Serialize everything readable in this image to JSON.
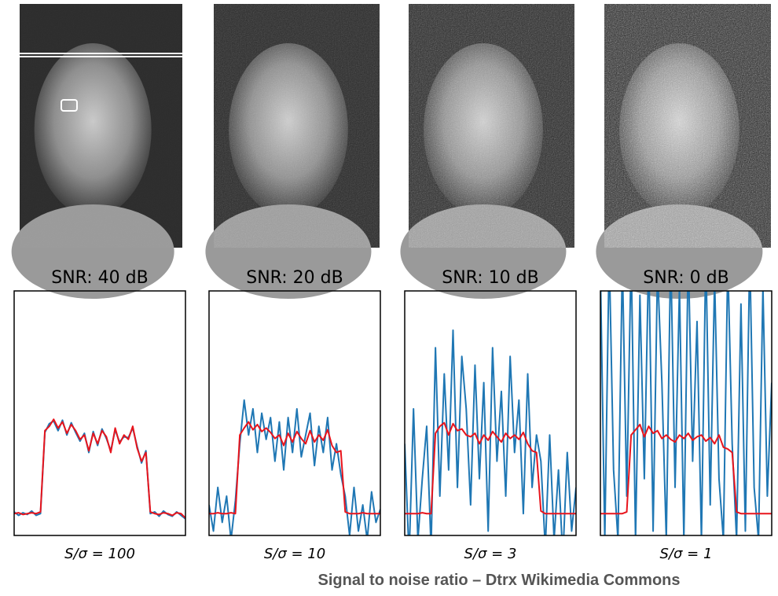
{
  "chart_data": [
    {
      "type": "line",
      "title": "SNR: 40 dB",
      "xlabel": "S/σ = 100",
      "xlim": [
        0,
        39
      ],
      "ylim": [
        -0.25,
        2.55
      ],
      "x": [
        0,
        1,
        2,
        3,
        4,
        5,
        6,
        7,
        8,
        9,
        10,
        11,
        12,
        13,
        14,
        15,
        16,
        17,
        18,
        19,
        20,
        21,
        22,
        23,
        24,
        25,
        26,
        27,
        28,
        29,
        30,
        31,
        32,
        33,
        34,
        35,
        36,
        37,
        38,
        39
      ],
      "series": [
        {
          "color": "#1f77b4",
          "values": [
            0.02,
            -0.02,
            0.01,
            -0.01,
            0.03,
            -0.02,
            0.0,
            0.93,
            1.03,
            1.06,
            0.95,
            1.07,
            0.9,
            1.04,
            0.93,
            0.83,
            0.92,
            0.7,
            0.94,
            0.78,
            0.97,
            0.86,
            0.72,
            0.96,
            0.82,
            0.88,
            0.87,
            0.98,
            0.77,
            0.58,
            0.72,
            0.0,
            0.02,
            -0.03,
            0.03,
            -0.01,
            -0.03,
            0.02,
            -0.02,
            -0.06
          ]
        },
        {
          "color": "#e8141c",
          "values": [
            0.0,
            0.01,
            -0.01,
            0.0,
            0.01,
            0.0,
            0.02,
            0.95,
            1.0,
            1.08,
            0.98,
            1.05,
            0.92,
            1.02,
            0.95,
            0.85,
            0.9,
            0.72,
            0.92,
            0.8,
            0.95,
            0.88,
            0.7,
            0.98,
            0.8,
            0.9,
            0.85,
            1.0,
            0.75,
            0.6,
            0.7,
            0.02,
            0.0,
            -0.01,
            0.01,
            0.0,
            -0.02,
            0.01,
            0.0,
            -0.05
          ]
        }
      ]
    },
    {
      "type": "line",
      "title": "SNR: 20 dB",
      "xlabel": "S/σ = 10",
      "xlim": [
        0,
        39
      ],
      "ylim": [
        -0.25,
        2.55
      ],
      "x": [
        0,
        1,
        2,
        3,
        4,
        5,
        6,
        7,
        8,
        9,
        10,
        11,
        12,
        13,
        14,
        15,
        16,
        17,
        18,
        19,
        20,
        21,
        22,
        23,
        24,
        25,
        26,
        27,
        28,
        29,
        30,
        31,
        32,
        33,
        34,
        35,
        36,
        37,
        38,
        39
      ],
      "series": [
        {
          "color": "#1f77b4",
          "values": [
            0.1,
            -0.2,
            0.3,
            -0.1,
            0.2,
            -0.3,
            0.15,
            0.8,
            1.3,
            0.9,
            1.2,
            0.7,
            1.15,
            0.85,
            1.1,
            0.6,
            1.05,
            0.5,
            1.1,
            0.7,
            1.2,
            0.65,
            0.9,
            1.15,
            0.55,
            1.0,
            0.7,
            1.1,
            0.5,
            0.8,
            0.45,
            0.2,
            -0.25,
            0.3,
            -0.2,
            0.1,
            -0.3,
            0.25,
            -0.1,
            0.05
          ]
        },
        {
          "color": "#e8141c",
          "values": [
            0.0,
            0.0,
            0.01,
            0.0,
            0.0,
            0.01,
            0.0,
            0.9,
            0.98,
            1.05,
            0.96,
            1.02,
            0.94,
            0.98,
            0.93,
            0.86,
            0.9,
            0.78,
            0.92,
            0.82,
            0.94,
            0.86,
            0.8,
            0.95,
            0.82,
            0.9,
            0.84,
            0.96,
            0.78,
            0.7,
            0.72,
            0.02,
            0.0,
            0.0,
            0.0,
            0.01,
            0.0,
            0.0,
            0.0,
            0.0
          ]
        }
      ]
    },
    {
      "type": "line",
      "title": "SNR: 10 dB",
      "xlabel": "S/σ = 3",
      "xlim": [
        0,
        39
      ],
      "ylim": [
        -0.25,
        2.55
      ],
      "x": [
        0,
        1,
        2,
        3,
        4,
        5,
        6,
        7,
        8,
        9,
        10,
        11,
        12,
        13,
        14,
        15,
        16,
        17,
        18,
        19,
        20,
        21,
        22,
        23,
        24,
        25,
        26,
        27,
        28,
        29,
        30,
        31,
        32,
        33,
        34,
        35,
        36,
        37,
        38,
        39
      ],
      "series": [
        {
          "color": "#1f77b4",
          "values": [
            0.8,
            -0.5,
            1.2,
            -0.3,
            0.4,
            1.0,
            -0.4,
            1.9,
            0.2,
            1.6,
            0.5,
            2.1,
            0.3,
            1.8,
            1.2,
            0.1,
            1.7,
            0.4,
            1.5,
            -0.2,
            1.9,
            0.6,
            1.4,
            0.2,
            1.8,
            0.7,
            1.3,
            0.0,
            1.6,
            0.3,
            0.9,
            0.6,
            -0.4,
            0.9,
            -0.3,
            0.5,
            -0.5,
            0.7,
            -0.2,
            0.3
          ]
        },
        {
          "color": "#e8141c",
          "values": [
            0.0,
            0.0,
            0.0,
            0.0,
            0.01,
            0.0,
            0.0,
            0.92,
            1.0,
            1.04,
            0.9,
            1.03,
            0.95,
            0.97,
            0.9,
            0.88,
            0.92,
            0.8,
            0.9,
            0.84,
            0.94,
            0.88,
            0.82,
            0.92,
            0.86,
            0.9,
            0.85,
            0.93,
            0.8,
            0.72,
            0.7,
            0.03,
            0.0,
            0.0,
            0.0,
            0.0,
            0.0,
            0.0,
            0.0,
            0.0
          ]
        }
      ]
    },
    {
      "type": "line",
      "title": "SNR:  0 dB",
      "xlabel": "S/σ = 1",
      "xlim": [
        0,
        39
      ],
      "ylim": [
        -0.25,
        2.55
      ],
      "x": [
        0,
        1,
        2,
        3,
        4,
        5,
        6,
        7,
        8,
        9,
        10,
        11,
        12,
        13,
        14,
        15,
        16,
        17,
        18,
        19,
        20,
        21,
        22,
        23,
        24,
        25,
        26,
        27,
        28,
        29,
        30,
        31,
        32,
        33,
        34,
        35,
        36,
        37,
        38,
        39
      ],
      "series": [
        {
          "color": "#1f77b4",
          "values": [
            2.8,
            -0.3,
            3.0,
            0.5,
            -0.3,
            2.9,
            0.2,
            3.0,
            -0.3,
            2.5,
            0.4,
            3.0,
            -0.2,
            2.8,
            1.5,
            -0.3,
            3.0,
            0.3,
            2.6,
            -0.3,
            3.0,
            0.6,
            2.2,
            -0.3,
            3.0,
            0.1,
            2.7,
            0.4,
            -0.3,
            2.9,
            0.8,
            -0.3,
            2.4,
            -0.2,
            3.0,
            0.3,
            -0.3,
            2.6,
            0.2,
            1.5
          ]
        },
        {
          "color": "#e8141c",
          "values": [
            0.0,
            0.0,
            0.0,
            0.0,
            0.0,
            0.0,
            0.02,
            0.9,
            0.96,
            1.02,
            0.88,
            1.0,
            0.92,
            0.95,
            0.86,
            0.9,
            0.85,
            0.82,
            0.9,
            0.86,
            0.92,
            0.84,
            0.88,
            0.9,
            0.83,
            0.87,
            0.8,
            0.9,
            0.76,
            0.74,
            0.7,
            0.02,
            0.0,
            0.0,
            0.0,
            0.0,
            0.0,
            0.0,
            0.0,
            0.0
          ]
        }
      ]
    }
  ],
  "caption": "Signal to noise ratio – Dtrx Wikimedia Commons"
}
